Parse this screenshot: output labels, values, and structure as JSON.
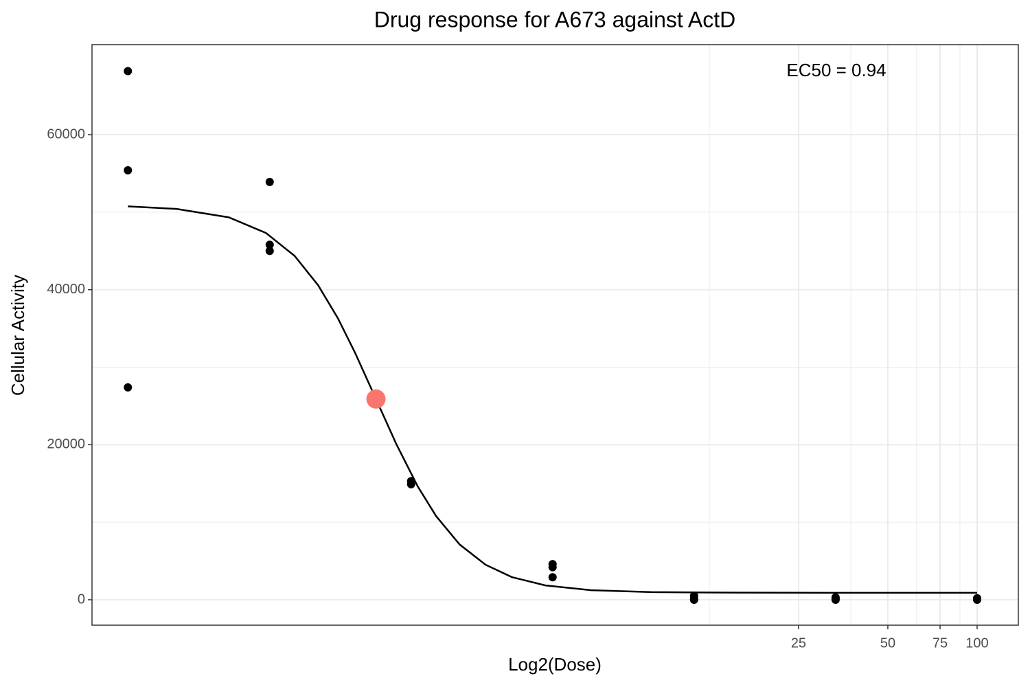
{
  "chart_data": {
    "type": "scatter",
    "title": "Drug response for A673 against ActD",
    "xlabel": "Log2(Dose)",
    "ylabel": "Cellular Activity",
    "annotation": "EC50 = 0.94",
    "xscale": "log",
    "grid": true,
    "xlim": [
      0.1037,
      137.7
    ],
    "xticks": [
      25,
      50,
      75,
      100
    ],
    "ylim": [
      -3280,
      71610
    ],
    "yticks": [
      0,
      20000,
      40000,
      60000
    ],
    "points": {
      "color": "#000000",
      "x": [
        0.137,
        0.137,
        0.137,
        0.412,
        0.412,
        0.412,
        1.235,
        1.235,
        3.704,
        3.704,
        3.704,
        11.11,
        11.11,
        11.11,
        33.33,
        33.33,
        33.33,
        100,
        100,
        100
      ],
      "y": [
        68200,
        55400,
        27400,
        53900,
        45800,
        45000,
        15300,
        14900,
        4600,
        4200,
        2900,
        500,
        100,
        0,
        300,
        100,
        0,
        200,
        50,
        0
      ]
    },
    "ec50_point": {
      "color": "#f8766d",
      "x": 0.94,
      "y": 25900
    },
    "fit_curve": {
      "color": "#000000",
      "x": [
        0.137,
        0.2,
        0.3,
        0.4,
        0.5,
        0.6,
        0.7,
        0.8,
        0.94,
        1.1,
        1.3,
        1.5,
        1.8,
        2.2,
        2.7,
        3.5,
        5,
        8,
        15,
        30,
        100
      ],
      "y": [
        50750,
        50420,
        49330,
        47320,
        44360,
        40570,
        36290,
        31830,
        25900,
        20110,
        14620,
        10780,
        7130,
        4520,
        2920,
        1850,
        1230,
        980,
        920,
        900,
        900
      ]
    }
  }
}
